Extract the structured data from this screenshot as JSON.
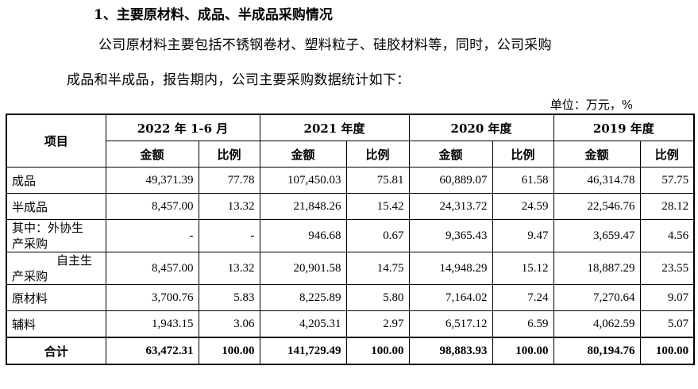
{
  "heading": "1、主要原材料、成品、半成品采购情况",
  "paragraph_line1": "公司原材料主要包括不锈钢卷材、塑料粒子、硅胶材料等，同时，公司采购",
  "paragraph_line2": "成品和半成品，报告期内，公司主要采购数据统计如下：",
  "unit": "单位：万元，%",
  "table": {
    "item_header": "项目",
    "periods": [
      "2022 年 1-6 月",
      "2021 年度",
      "2020 年度",
      "2019 年度"
    ],
    "amount_label": "金额",
    "ratio_label": "比例",
    "rows": [
      {
        "label": "成品",
        "cells": [
          "49,371.39",
          "77.78",
          "107,450.03",
          "75.81",
          "60,889.07",
          "61.58",
          "46,314.78",
          "57.75"
        ]
      },
      {
        "label": "半成品",
        "cells": [
          "8,457.00",
          "13.32",
          "21,848.26",
          "15.42",
          "24,313.72",
          "24.59",
          "22,546.76",
          "28.12"
        ]
      },
      {
        "label_line1": "其中：外协生",
        "label_line2": "产采购",
        "cells": [
          "-",
          "-",
          "946.68",
          "0.67",
          "9,365.43",
          "9.47",
          "3,659.47",
          "4.56"
        ]
      },
      {
        "label_line1": "自主生",
        "label_line2": "产采购",
        "cells": [
          "8,457.00",
          "13.32",
          "20,901.58",
          "14.75",
          "14,948.29",
          "15.12",
          "18,887.29",
          "23.55"
        ]
      },
      {
        "label": "原材料",
        "cells": [
          "3,700.76",
          "5.83",
          "8,225.89",
          "5.80",
          "7,164.02",
          "7.24",
          "7,270.64",
          "9.07"
        ]
      },
      {
        "label": "辅料",
        "cells": [
          "1,943.15",
          "3.06",
          "4,205.31",
          "2.97",
          "6,517.12",
          "6.59",
          "4,062.59",
          "5.07"
        ]
      }
    ],
    "total": {
      "label": "合计",
      "cells": [
        "63,472.31",
        "100.00",
        "141,729.49",
        "100.00",
        "98,883.93",
        "100.00",
        "80,194.76",
        "100.00"
      ]
    }
  }
}
